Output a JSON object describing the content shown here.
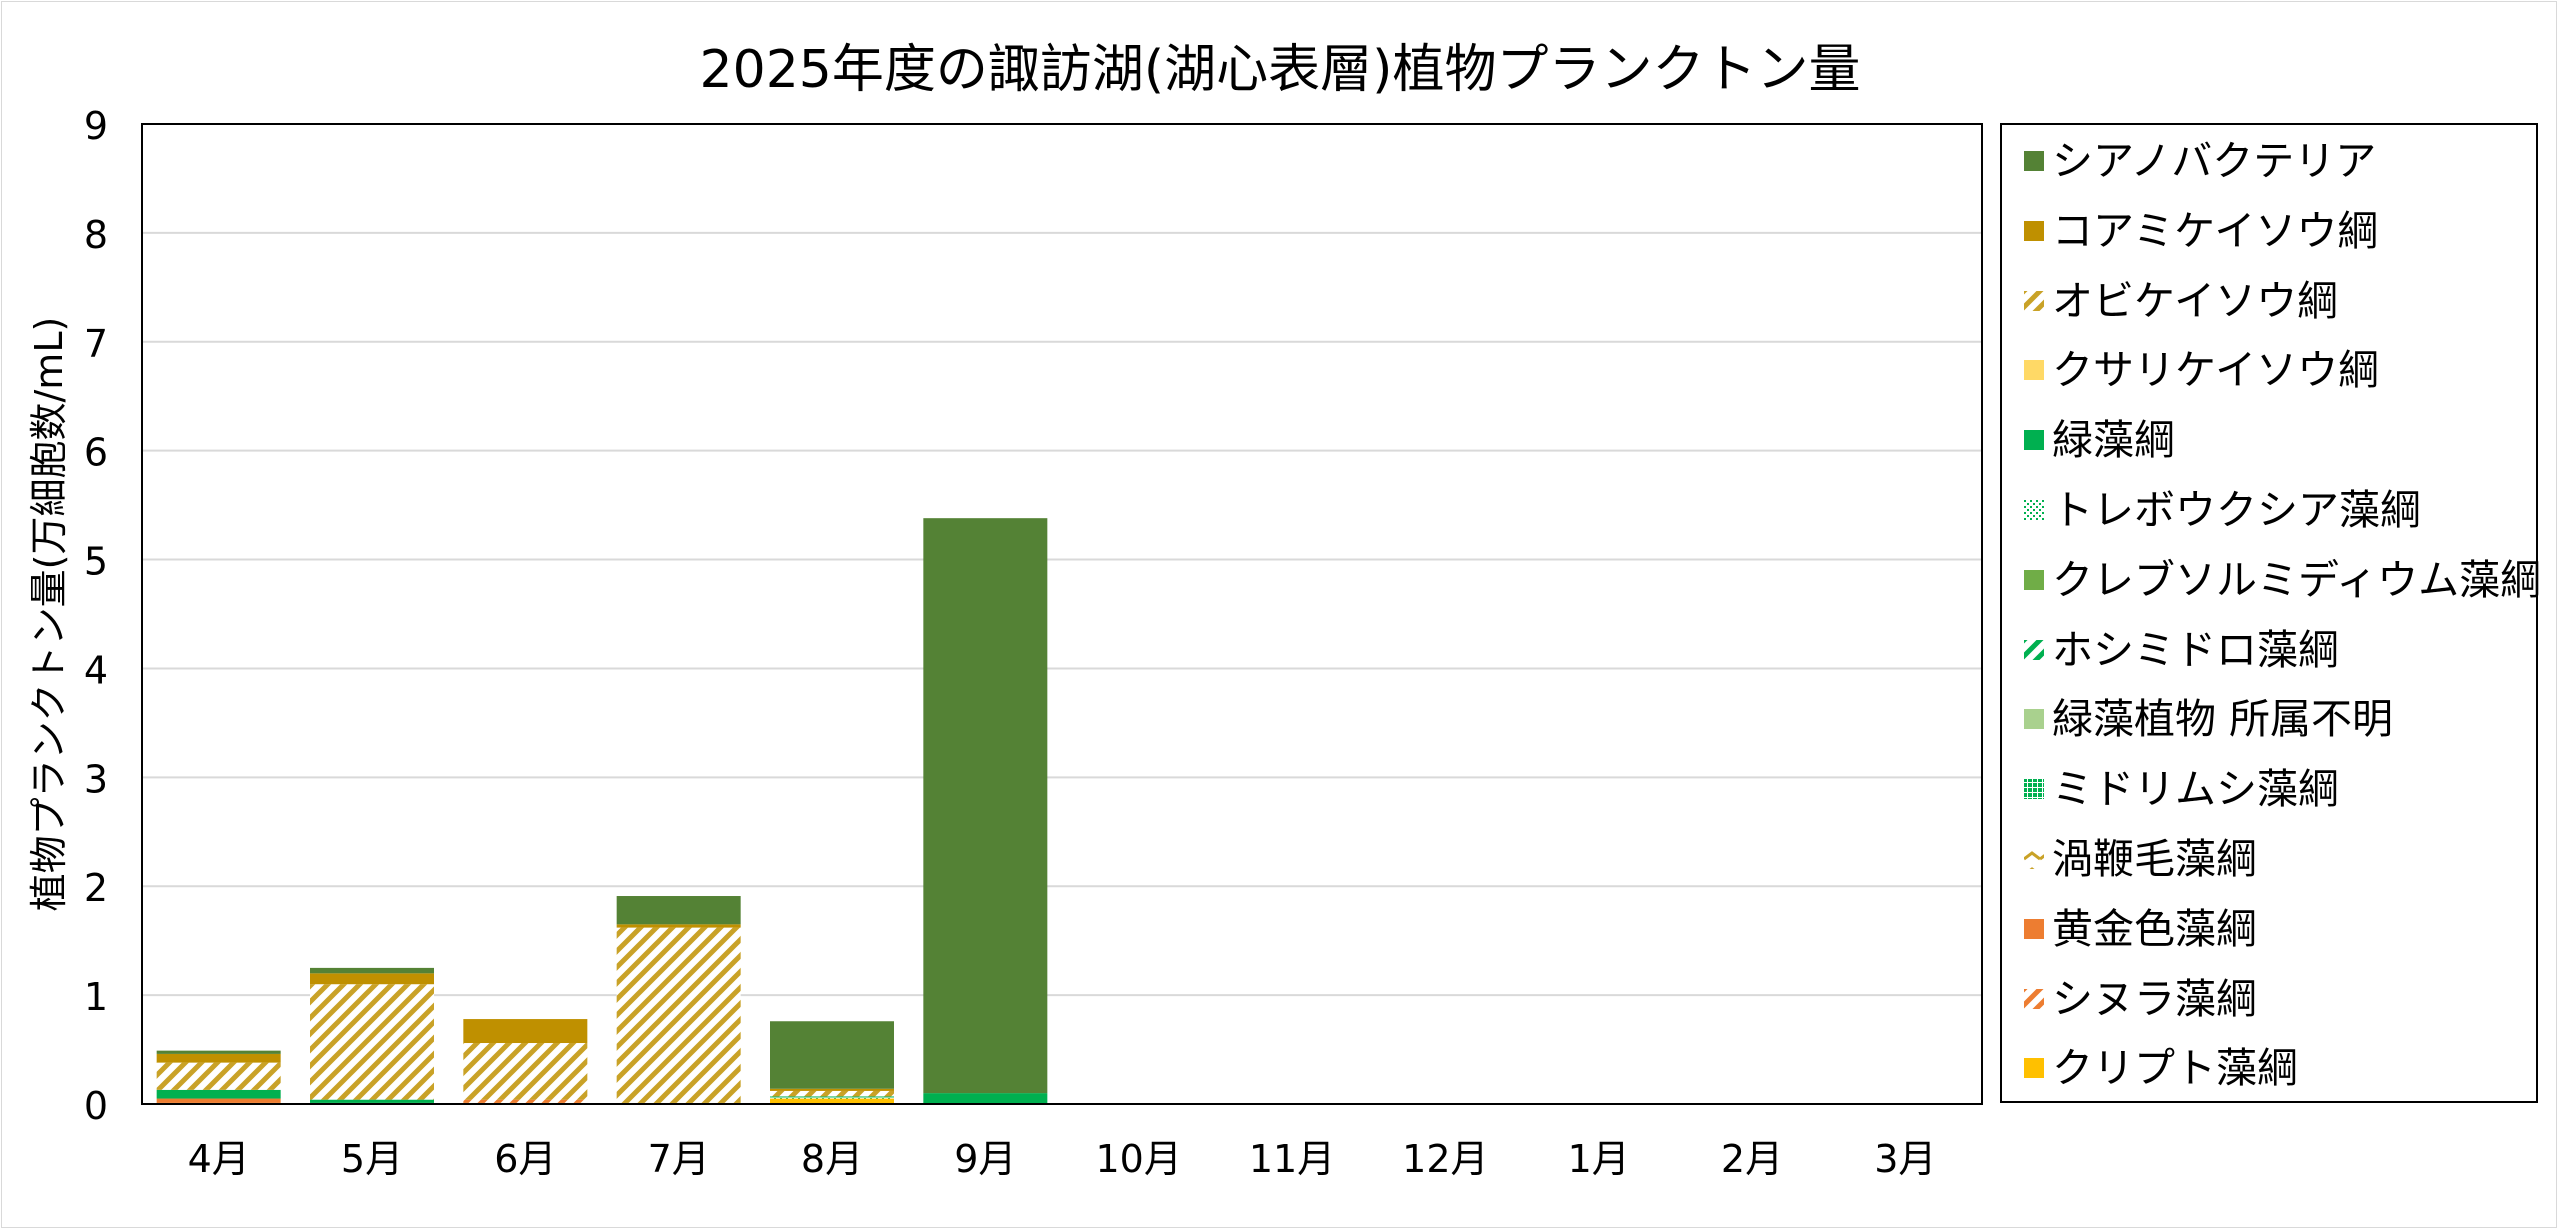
{
  "chart_data": {
    "type": "bar",
    "stacked": true,
    "title": "2025年度の諏訪湖(湖心表層)植物プランクトン量",
    "ylabel": "植物プランクトン量(万細胞数/mL)",
    "xlabel": "",
    "ylim": [
      0,
      9
    ],
    "yticks": [
      "0",
      "1",
      "2",
      "3",
      "4",
      "5",
      "6",
      "7",
      "8",
      "9"
    ],
    "grid": true,
    "legend_position": "right",
    "categories": [
      "4月",
      "5月",
      "6月",
      "7月",
      "8月",
      "9月",
      "10月",
      "11月",
      "12月",
      "1月",
      "2月",
      "3月"
    ],
    "series": [
      {
        "name": "クリプト藻綱",
        "color": "#ffc000",
        "pattern": "solid",
        "values": [
          0.01,
          0.01,
          0.01,
          0.01,
          0.05,
          0.0,
          null,
          null,
          null,
          null,
          null,
          null
        ]
      },
      {
        "name": "シヌラ藻綱",
        "color": "#ed7d31",
        "pattern": "hatch",
        "values": [
          0.0,
          0.0,
          0.03,
          0.0,
          0.0,
          0.0,
          null,
          null,
          null,
          null,
          null,
          null
        ]
      },
      {
        "name": "黄金色藻綱",
        "color": "#ed7d31",
        "pattern": "solid",
        "values": [
          0.04,
          0.0,
          0.0,
          0.0,
          0.0,
          0.0,
          null,
          null,
          null,
          null,
          null,
          null
        ]
      },
      {
        "name": "渦鞭毛藻綱",
        "color": "#c9a227",
        "pattern": "chevron",
        "values": [
          0.0,
          0.0,
          0.0,
          0.0,
          0.0,
          0.0,
          null,
          null,
          null,
          null,
          null,
          null
        ]
      },
      {
        "name": "ミドリムシ藻綱",
        "color": "#00b050",
        "pattern": "grid",
        "values": [
          0.0,
          0.0,
          0.0,
          0.0,
          0.0,
          0.0,
          null,
          null,
          null,
          null,
          null,
          null
        ]
      },
      {
        "name": "緑藻植物 所属不明",
        "color": "#a9d18e",
        "pattern": "solid",
        "values": [
          0.0,
          0.0,
          0.0,
          0.0,
          0.0,
          0.0,
          null,
          null,
          null,
          null,
          null,
          null
        ]
      },
      {
        "name": "ホシミドロ藻綱",
        "color": "#00b050",
        "pattern": "hatch",
        "values": [
          0.0,
          0.0,
          0.0,
          0.0,
          0.0,
          0.0,
          null,
          null,
          null,
          null,
          null,
          null
        ]
      },
      {
        "name": "クレブソルミディウム藻綱",
        "color": "#70ad47",
        "pattern": "solid",
        "values": [
          0.0,
          0.0,
          0.0,
          0.0,
          0.0,
          0.0,
          null,
          null,
          null,
          null,
          null,
          null
        ]
      },
      {
        "name": "トレボウクシア藻綱",
        "color": "#00b050",
        "pattern": "dots",
        "values": [
          0.0,
          0.0,
          0.0,
          0.0,
          0.01,
          0.0,
          null,
          null,
          null,
          null,
          null,
          null
        ]
      },
      {
        "name": "緑藻綱",
        "color": "#00b050",
        "pattern": "solid",
        "values": [
          0.08,
          0.03,
          0.0,
          0.0,
          0.01,
          0.1,
          null,
          null,
          null,
          null,
          null,
          null
        ]
      },
      {
        "name": "クサリケイソウ綱",
        "color": "#ffd966",
        "pattern": "solid",
        "values": [
          0.0,
          0.0,
          0.0,
          0.0,
          0.0,
          0.0,
          null,
          null,
          null,
          null,
          null,
          null
        ]
      },
      {
        "name": "オビケイソウ綱",
        "color": "#c9a227",
        "pattern": "hatch",
        "values": [
          0.25,
          1.06,
          0.52,
          1.61,
          0.05,
          0.0,
          null,
          null,
          null,
          null,
          null,
          null
        ]
      },
      {
        "name": "コアミケイソウ綱",
        "color": "#bf9000",
        "pattern": "solid",
        "values": [
          0.08,
          0.1,
          0.22,
          0.03,
          0.02,
          0.0,
          null,
          null,
          null,
          null,
          null,
          null
        ]
      },
      {
        "name": "シアノバクテリア",
        "color": "#548235",
        "pattern": "solid",
        "values": [
          0.03,
          0.05,
          0.0,
          0.26,
          0.62,
          5.28,
          null,
          null,
          null,
          null,
          null,
          null
        ]
      }
    ],
    "legend_order": [
      "シアノバクテリア",
      "コアミケイソウ綱",
      "オビケイソウ綱",
      "クサリケイソウ綱",
      "緑藻綱",
      "トレボウクシア藻綱",
      "クレブソルミディウム藻綱",
      "ホシミドロ藻綱",
      "緑藻植物 所属不明",
      "ミドリムシ藻綱",
      "渦鞭毛藻綱",
      "黄金色藻綱",
      "シヌラ藻綱",
      "クリプト藻綱"
    ]
  }
}
